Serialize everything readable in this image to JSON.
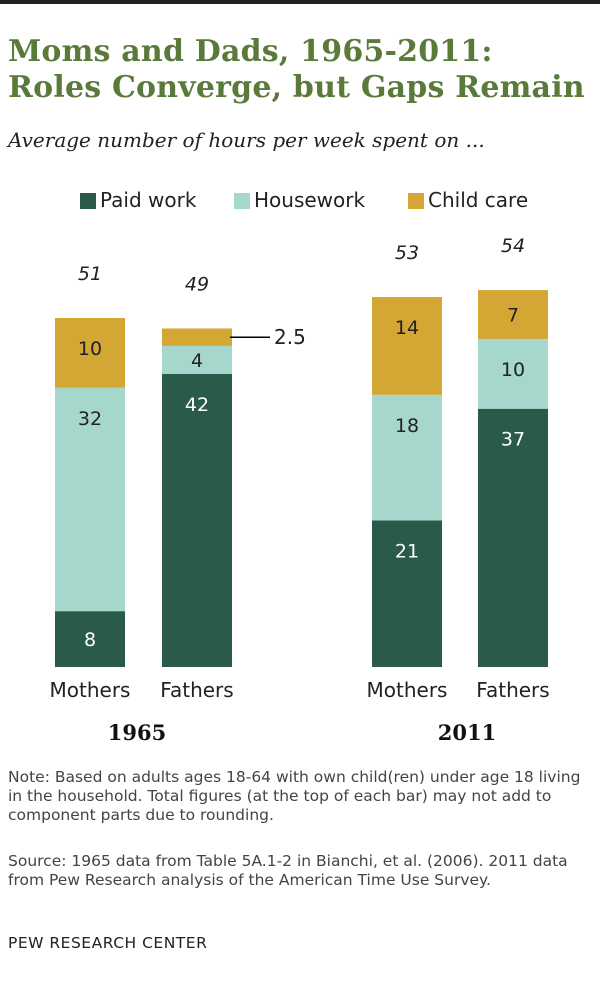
{
  "title_lines": [
    "Moms and Dads, 1965-2011:",
    "Roles Converge, but Gaps Remain"
  ],
  "subtitle": "Average number of hours per week spent on ...",
  "chart_data": {
    "type": "bar",
    "stacked": true,
    "groups": [
      "1965",
      "2011"
    ],
    "categories": [
      "Mothers",
      "Fathers",
      "Mothers",
      "Fathers"
    ],
    "category_group": [
      "1965",
      "1965",
      "2011",
      "2011"
    ],
    "totals": [
      "51",
      "49",
      "53",
      "54"
    ],
    "series": [
      {
        "name": "Paid work",
        "color": "#2a5a4a",
        "values": [
          8,
          42,
          21,
          37
        ],
        "labels": [
          "8",
          "42",
          "21",
          "37"
        ]
      },
      {
        "name": "Housework",
        "color": "#a6d7cc",
        "values": [
          32,
          4,
          18,
          10
        ],
        "labels": [
          "32",
          "4",
          "18",
          "10"
        ]
      },
      {
        "name": "Child care",
        "color": "#d4a634",
        "values": [
          10,
          2.5,
          14,
          7
        ],
        "labels": [
          "10",
          "2.5",
          "14",
          "7"
        ]
      }
    ],
    "callout_index": 1,
    "ylim": [
      0,
      56
    ],
    "legend_position": "top"
  },
  "note": "Note: Based on adults ages 18-64 with own child(ren) under age 18 living in the household. Total figures (at the top of each bar) may not add to component parts due to rounding.",
  "source": "Source: 1965 data from Table 5A.1-2 in Bianchi, et al. (2006). 2011 data from Pew Research analysis of the American Time Use Survey.",
  "credit": "PEW RESEARCH  CENTER"
}
